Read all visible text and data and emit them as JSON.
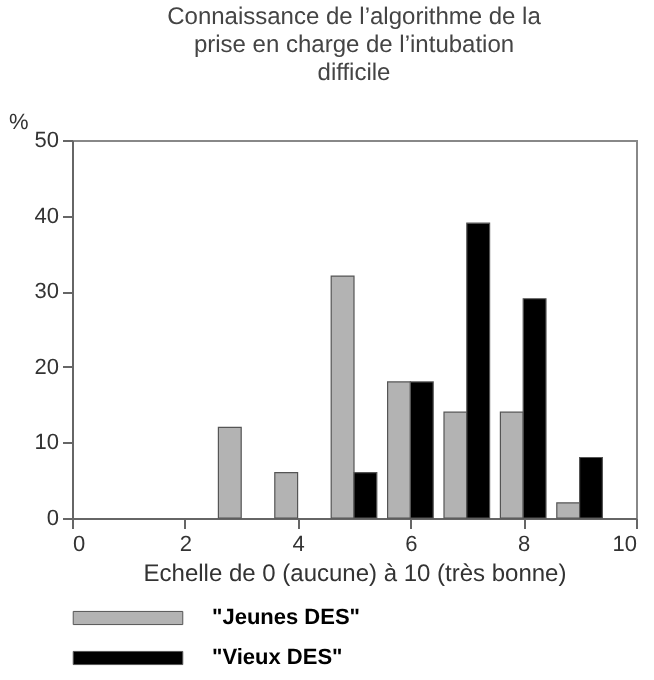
{
  "chart_data": {
    "type": "bar",
    "title": "Connaissance de l’algorithme de la prise en charge de l’intubation difficile",
    "xlabel": "Echelle de 0 (aucune) à 10 (très bonne)",
    "ylabel": "%",
    "xlim": [
      0,
      10
    ],
    "xticks": [
      0,
      2,
      4,
      6,
      8,
      10
    ],
    "ylim": [
      0,
      50
    ],
    "yticks": [
      0,
      10,
      20,
      30,
      40,
      50
    ],
    "grid": false,
    "legend": "bottom",
    "series": [
      {
        "name": "\"Jeunes DES\"",
        "color": "#b3b3b3",
        "x": [
          3,
          4,
          5,
          6,
          7,
          8,
          9
        ],
        "values": [
          12,
          6,
          32,
          18,
          14,
          14,
          2
        ]
      },
      {
        "name": "\"Vieux DES\"",
        "color": "#000000",
        "x": [
          5,
          6,
          7,
          8,
          9
        ],
        "values": [
          6,
          18,
          39,
          29,
          8
        ]
      }
    ]
  }
}
